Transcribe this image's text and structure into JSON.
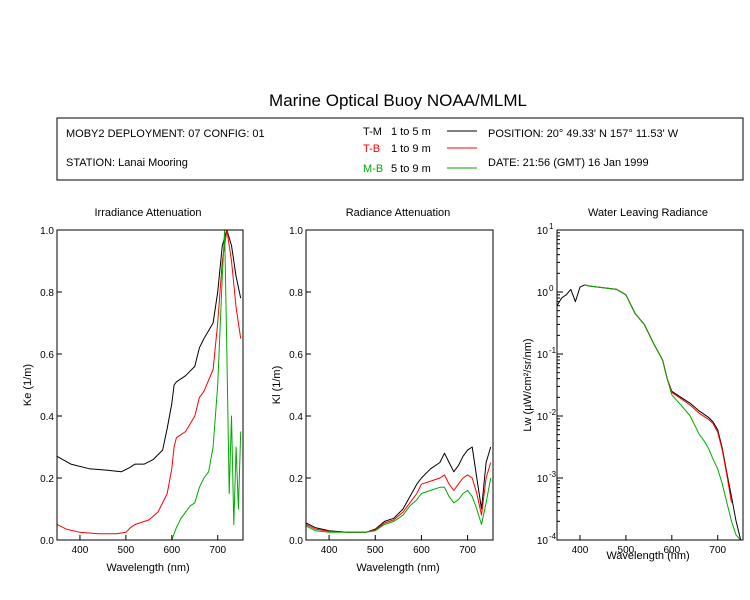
{
  "figure": {
    "title": "Marine Optical Buoy NOAA/MLML"
  },
  "info_box": {
    "deployment": "MOBY2 DEPLOYMENT: 07 CONFIG: 01",
    "station": "STATION: Lanai Mooring",
    "position": "POSITION: 20° 49.33' N   157° 11.53' W",
    "date": "DATE: 21:56 (GMT) 16 Jan 1999"
  },
  "legend": [
    {
      "code": "T-M",
      "range": "1 to 5  m",
      "color": "#000000"
    },
    {
      "code": "T-B",
      "range": "1 to 9  m",
      "color": "#ff0000"
    },
    {
      "code": "M-B",
      "range": "5 to 9  m",
      "color": "#00aa00"
    }
  ],
  "chart_data": [
    {
      "type": "line",
      "title": "Irradiance Attenuation",
      "xlabel": "Wavelength (nm)",
      "ylabel": "Ke  (1/m)",
      "xlim": [
        350,
        755
      ],
      "ylim": [
        0,
        1.0
      ],
      "xticks": [
        "400",
        "500",
        "600",
        "700"
      ],
      "yticks": [
        "0.0",
        "0.2",
        "0.4",
        "0.6",
        "0.8",
        "1.0"
      ],
      "series": [
        {
          "name": "T-M",
          "color": "#000000",
          "x": [
            350,
            380,
            420,
            460,
            490,
            510,
            520,
            540,
            560,
            580,
            590,
            600,
            605,
            610,
            630,
            650,
            660,
            670,
            690,
            700,
            710,
            720,
            730,
            740,
            750
          ],
          "y": [
            0.27,
            0.245,
            0.23,
            0.225,
            0.22,
            0.235,
            0.245,
            0.245,
            0.26,
            0.29,
            0.36,
            0.44,
            0.5,
            0.51,
            0.53,
            0.56,
            0.62,
            0.65,
            0.7,
            0.8,
            0.95,
            1.0,
            0.95,
            0.85,
            0.78
          ]
        },
        {
          "name": "T-B",
          "color": "#ff0000",
          "x": [
            350,
            370,
            400,
            440,
            480,
            500,
            510,
            520,
            550,
            570,
            590,
            600,
            605,
            610,
            630,
            650,
            660,
            670,
            690,
            700,
            710,
            720,
            730,
            740,
            750
          ],
          "y": [
            0.05,
            0.035,
            0.025,
            0.02,
            0.02,
            0.025,
            0.04,
            0.05,
            0.065,
            0.09,
            0.15,
            0.23,
            0.3,
            0.33,
            0.35,
            0.4,
            0.46,
            0.48,
            0.55,
            0.7,
            0.9,
            1.0,
            0.9,
            0.75,
            0.65
          ]
        },
        {
          "name": "M-B",
          "color": "#00aa00",
          "x": [
            600,
            605,
            610,
            620,
            630,
            640,
            650,
            660,
            670,
            680,
            690,
            700,
            710,
            715,
            720,
            725,
            730,
            735,
            740,
            745,
            750
          ],
          "y": [
            0.0,
            0.02,
            0.04,
            0.07,
            0.09,
            0.11,
            0.12,
            0.17,
            0.2,
            0.22,
            0.3,
            0.5,
            0.85,
            1.0,
            0.6,
            0.15,
            0.4,
            0.05,
            0.3,
            0.1,
            0.35
          ]
        }
      ]
    },
    {
      "type": "line",
      "title": "Radiance Attenuation",
      "xlabel": "Wavelength (nm)",
      "ylabel": "Kl  (1/m)",
      "xlim": [
        350,
        755
      ],
      "ylim": [
        0,
        1.0
      ],
      "xticks": [
        "400",
        "500",
        "600",
        "700"
      ],
      "yticks": [
        "0.0",
        "0.2",
        "0.4",
        "0.6",
        "0.8",
        "1.0"
      ],
      "series": [
        {
          "name": "T-M",
          "color": "#000000",
          "x": [
            350,
            370,
            400,
            440,
            480,
            500,
            520,
            540,
            560,
            575,
            590,
            600,
            620,
            640,
            650,
            660,
            670,
            680,
            690,
            700,
            710,
            720,
            730,
            740,
            750
          ],
          "y": [
            0.055,
            0.04,
            0.03,
            0.025,
            0.025,
            0.035,
            0.06,
            0.07,
            0.1,
            0.14,
            0.18,
            0.2,
            0.23,
            0.25,
            0.28,
            0.25,
            0.22,
            0.24,
            0.27,
            0.29,
            0.3,
            0.2,
            0.1,
            0.25,
            0.3
          ]
        },
        {
          "name": "T-B",
          "color": "#ff0000",
          "x": [
            350,
            370,
            400,
            440,
            480,
            500,
            520,
            540,
            560,
            575,
            590,
            600,
            620,
            640,
            650,
            660,
            670,
            680,
            690,
            700,
            710,
            720,
            730,
            740,
            750
          ],
          "y": [
            0.05,
            0.035,
            0.028,
            0.025,
            0.025,
            0.033,
            0.055,
            0.065,
            0.09,
            0.12,
            0.15,
            0.18,
            0.19,
            0.2,
            0.21,
            0.18,
            0.16,
            0.18,
            0.2,
            0.21,
            0.2,
            0.15,
            0.08,
            0.2,
            0.25
          ]
        },
        {
          "name": "M-B",
          "color": "#00aa00",
          "x": [
            350,
            370,
            400,
            440,
            480,
            500,
            520,
            540,
            560,
            575,
            590,
            600,
            620,
            640,
            650,
            660,
            670,
            680,
            690,
            700,
            710,
            720,
            730,
            740,
            750
          ],
          "y": [
            0.045,
            0.03,
            0.025,
            0.025,
            0.025,
            0.03,
            0.05,
            0.06,
            0.08,
            0.11,
            0.13,
            0.15,
            0.16,
            0.17,
            0.17,
            0.14,
            0.12,
            0.13,
            0.15,
            0.16,
            0.14,
            0.1,
            0.05,
            0.12,
            0.2
          ]
        }
      ]
    },
    {
      "type": "line",
      "title": "Water Leaving Radiance",
      "xlabel": "Wavelength (nm)",
      "ylabel": "Lw  (µW/cm²/sr/nm)",
      "xlim": [
        350,
        755
      ],
      "ylim": [
        0.0001,
        10
      ],
      "yscale": "log",
      "xticks": [
        "400",
        "500",
        "600",
        "700"
      ],
      "yticks_base": [
        "10",
        "10",
        "10",
        "10",
        "10",
        "10"
      ],
      "yticks_exp": [
        "-4",
        "-3",
        "-2",
        "-1",
        "0",
        "1"
      ],
      "series": [
        {
          "name": "T-M",
          "color": "#000000",
          "x": [
            350,
            360,
            370,
            380,
            390,
            400,
            410,
            420,
            440,
            460,
            480,
            500,
            520,
            540,
            560,
            580,
            590,
            600,
            620,
            640,
            660,
            680,
            690,
            700,
            710,
            720,
            730,
            740,
            750
          ],
          "y": [
            0.6,
            0.8,
            0.9,
            1.1,
            0.7,
            1.2,
            1.3,
            1.25,
            1.2,
            1.15,
            1.1,
            0.9,
            0.45,
            0.3,
            0.15,
            0.08,
            0.04,
            0.025,
            0.02,
            0.016,
            0.012,
            0.0095,
            0.008,
            0.006,
            0.003,
            0.0012,
            0.0005,
            0.0002,
            0.0001
          ]
        },
        {
          "name": "T-B",
          "color": "#ff0000",
          "x": [
            410,
            420,
            440,
            460,
            480,
            500,
            520,
            540,
            560,
            580,
            590,
            600,
            620,
            640,
            660,
            680,
            690,
            700,
            710,
            720,
            730
          ],
          "y": [
            1.3,
            1.25,
            1.2,
            1.15,
            1.1,
            0.9,
            0.45,
            0.3,
            0.15,
            0.08,
            0.04,
            0.024,
            0.019,
            0.015,
            0.011,
            0.0088,
            0.0075,
            0.0055,
            0.0028,
            0.0011,
            0.0004
          ]
        },
        {
          "name": "M-B",
          "color": "#00aa00",
          "x": [
            410,
            420,
            440,
            460,
            480,
            500,
            520,
            540,
            560,
            580,
            590,
            600,
            620,
            640,
            660,
            670,
            680,
            690,
            700,
            710,
            720,
            730,
            740,
            750
          ],
          "y": [
            1.3,
            1.25,
            1.2,
            1.15,
            1.1,
            0.9,
            0.45,
            0.3,
            0.15,
            0.08,
            0.04,
            0.022,
            0.015,
            0.01,
            0.005,
            0.004,
            0.003,
            0.002,
            0.0014,
            0.0008,
            0.0004,
            0.0002,
            0.00012,
            0.0001
          ]
        }
      ]
    }
  ]
}
